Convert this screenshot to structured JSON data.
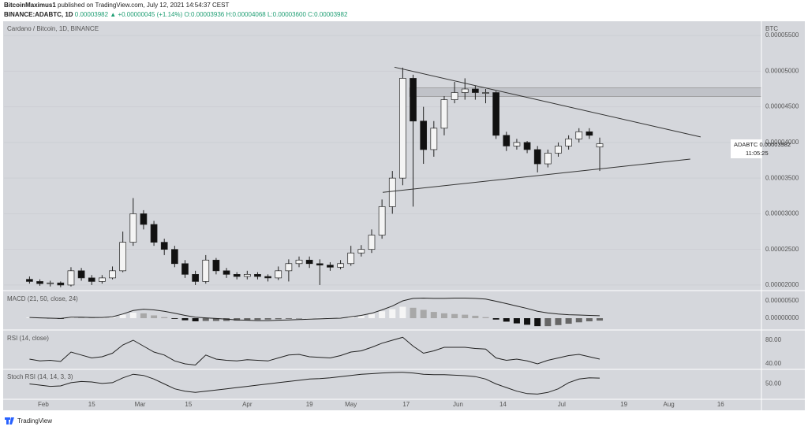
{
  "header": {
    "author": "BitcoinMaximus1",
    "published": "published on TradingView.com, July 12, 2021 14:54:37 CEST",
    "symbol": "BINANCE:ADABTC, 1D",
    "last": "0.00003982",
    "change": "▲ +0.00000045 (+1.14%)",
    "open": "O:0.00003936",
    "high": "H:0.00004068",
    "low": "L:0.00003600",
    "close": "C:0.00003982",
    "price_tag": {
      "symbol": "ADABTC",
      "price": "0.00003982",
      "countdown": "11:05:25"
    },
    "footer": "TradingView"
  },
  "chart_data": [
    {
      "type": "candlestick",
      "title": "Cardano / Bitcoin, 1D, BINANCE",
      "unit": "BTC",
      "x": [
        28,
        31,
        34,
        37,
        40,
        43,
        46,
        49,
        52,
        55,
        58,
        61,
        64,
        67,
        70,
        73,
        76,
        79,
        82,
        85,
        88,
        91,
        94,
        97,
        100,
        103,
        106,
        109,
        112,
        115,
        118,
        121,
        124,
        127,
        130,
        133,
        136,
        139,
        142,
        145,
        148,
        151,
        154,
        157,
        160,
        163,
        166,
        169,
        172,
        175,
        178,
        181,
        184,
        187,
        190,
        193
      ],
      "open": [
        2.08e-05,
        2.05e-05,
        2.02e-05,
        2.03e-05,
        2e-05,
        2.2e-05,
        2.1e-05,
        2.05e-05,
        2.1e-05,
        2.2e-05,
        2.6e-05,
        3e-05,
        2.85e-05,
        2.6e-05,
        2.5e-05,
        2.3e-05,
        2.15e-05,
        2.05e-05,
        2.35e-05,
        2.2e-05,
        2.15e-05,
        2.12e-05,
        2.15e-05,
        2.12e-05,
        2.1e-05,
        2.2e-05,
        2.3e-05,
        2.35e-05,
        2.3e-05,
        2.28e-05,
        2.25e-05,
        2.3e-05,
        2.45e-05,
        2.5e-05,
        2.7e-05,
        3.1e-05,
        3.5e-05,
        4.9e-05,
        4.3e-05,
        3.9e-05,
        4.2e-05,
        4.6e-05,
        4.7e-05,
        4.75e-05,
        4.7e-05,
        4.7e-05,
        4.1e-05,
        3.95e-05,
        4e-05,
        3.9e-05,
        3.7e-05,
        3.85e-05,
        3.95e-05,
        4.05e-05,
        4.15e-05,
        3.936e-05
      ],
      "high": [
        2.12e-05,
        2.08e-05,
        2.06e-05,
        2.05e-05,
        2.25e-05,
        2.24e-05,
        2.14e-05,
        2.14e-05,
        2.26e-05,
        2.75e-05,
        3.22e-05,
        3.05e-05,
        2.9e-05,
        2.65e-05,
        2.55e-05,
        2.35e-05,
        2.2e-05,
        2.42e-05,
        2.38e-05,
        2.24e-05,
        2.18e-05,
        2.2e-05,
        2.18e-05,
        2.15e-05,
        2.26e-05,
        2.36e-05,
        2.4e-05,
        2.4e-05,
        2.36e-05,
        2.32e-05,
        2.35e-05,
        2.55e-05,
        2.56e-05,
        2.78e-05,
        3.2e-05,
        3.6e-05,
        5.05e-05,
        4.95e-05,
        4.5e-05,
        4.3e-05,
        4.65e-05,
        4.85e-05,
        4.9e-05,
        4.8e-05,
        4.75e-05,
        4.72e-05,
        4.15e-05,
        4.05e-05,
        4.02e-05,
        3.95e-05,
        3.9e-05,
        4e-05,
        4.1e-05,
        4.2e-05,
        4.2e-05,
        4.068e-05
      ],
      "low": [
        2.02e-05,
        1.99e-05,
        1.98e-05,
        1.97e-05,
        1.98e-05,
        2.06e-05,
        2e-05,
        2.02e-05,
        2.08e-05,
        2.18e-05,
        2.55e-05,
        2.78e-05,
        2.55e-05,
        2.42e-05,
        2.25e-05,
        2.1e-05,
        2e-05,
        2.02e-05,
        2.15e-05,
        2.1e-05,
        2.08e-05,
        2.08e-05,
        2.08e-05,
        2.05e-05,
        2.07e-05,
        2.05e-05,
        2.25e-05,
        2.24e-05,
        2e-05,
        2.2e-05,
        2.22e-05,
        2.27e-05,
        2.4e-05,
        2.45e-05,
        2.65e-05,
        3e-05,
        3.4e-05,
        3.1e-05,
        3.7e-05,
        3.8e-05,
        4.1e-05,
        4.55e-05,
        4.6e-05,
        4.6e-05,
        4.55e-05,
        4.05e-05,
        3.88e-05,
        3.9e-05,
        3.85e-05,
        3.58e-05,
        3.65e-05,
        3.8e-05,
        3.9e-05,
        4e-05,
        4.05e-05,
        3.6e-05
      ],
      "close": [
        2.05e-05,
        2.02e-05,
        2.03e-05,
        2e-05,
        2.2e-05,
        2.1e-05,
        2.05e-05,
        2.1e-05,
        2.2e-05,
        2.6e-05,
        3e-05,
        2.85e-05,
        2.6e-05,
        2.5e-05,
        2.3e-05,
        2.15e-05,
        2.05e-05,
        2.35e-05,
        2.2e-05,
        2.15e-05,
        2.12e-05,
        2.15e-05,
        2.12e-05,
        2.1e-05,
        2.2e-05,
        2.3e-05,
        2.35e-05,
        2.3e-05,
        2.28e-05,
        2.25e-05,
        2.3e-05,
        2.45e-05,
        2.5e-05,
        2.7e-05,
        3.1e-05,
        3.5e-05,
        4.9e-05,
        4.3e-05,
        3.9e-05,
        4.2e-05,
        4.6e-05,
        4.7e-05,
        4.75e-05,
        4.7e-05,
        4.7e-05,
        4.1e-05,
        3.95e-05,
        4e-05,
        3.9e-05,
        3.7e-05,
        3.85e-05,
        3.95e-05,
        4.05e-05,
        4.15e-05,
        4.1e-05,
        3.982e-05
      ],
      "up_color": "#f4f4f4",
      "down_color": "#111111",
      "trendlines": [
        {
          "x": [
            133.6,
            222.2
          ],
          "y": [
            5.056e-05,
            4.078e-05
          ]
        },
        {
          "x": [
            130.2,
            219.2
          ],
          "y": [
            3.3e-05,
            3.767e-05
          ]
        }
      ],
      "zone": {
        "x": 138,
        "y": [
          4.644e-05,
          4.767e-05
        ]
      },
      "xlim": [
        20.6,
        239.8
      ],
      "xticks": [
        {
          "value": 32,
          "label": "Feb"
        },
        {
          "value": 46,
          "label": "15"
        },
        {
          "value": 60,
          "label": "Mar"
        },
        {
          "value": 74,
          "label": "15"
        },
        {
          "value": 91,
          "label": "Apr"
        },
        {
          "value": 109,
          "label": "19"
        },
        {
          "value": 121,
          "label": "May"
        },
        {
          "value": 137,
          "label": "17"
        },
        {
          "value": 152,
          "label": "Jun"
        },
        {
          "value": 165,
          "label": "14"
        },
        {
          "value": 182,
          "label": "Jul"
        },
        {
          "value": 200,
          "label": "19"
        },
        {
          "value": 213,
          "label": "Aug"
        },
        {
          "value": 228,
          "label": "16"
        }
      ],
      "ylim": [
        1.933e-05,
        5.689e-05
      ],
      "yticks": [
        {
          "value": 2e-05,
          "label": "0.00002000"
        },
        {
          "value": 2.5e-05,
          "label": "0.00002500"
        },
        {
          "value": 3e-05,
          "label": "0.00003000"
        },
        {
          "value": 3.5e-05,
          "label": "0.00003500"
        },
        {
          "value": 4e-05,
          "label": "0.00004000"
        },
        {
          "value": 4.5e-05,
          "label": "0.00004500"
        },
        {
          "value": 5e-05,
          "label": "0.00005000"
        },
        {
          "value": 5.5e-05,
          "label": "0.00005500"
        }
      ],
      "grid": true
    },
    {
      "type": "bar",
      "title": "MACD (21, 50, close, 24)",
      "x": [
        28,
        31,
        34,
        37,
        40,
        43,
        46,
        49,
        52,
        55,
        58,
        61,
        64,
        67,
        70,
        73,
        76,
        79,
        82,
        85,
        88,
        91,
        94,
        97,
        100,
        103,
        106,
        109,
        112,
        115,
        118,
        121,
        124,
        127,
        130,
        133,
        136,
        139,
        142,
        145,
        148,
        151,
        154,
        157,
        160,
        163,
        166,
        169,
        172,
        175,
        178,
        181,
        184,
        187,
        190,
        193
      ],
      "values": [
        2e-07,
        1e-07,
        -1e-07,
        -2e-07,
        3e-07,
        2e-07,
        1e-07,
        1e-07,
        3e-07,
        1e-06,
        1.6e-06,
        1.4e-06,
        8e-07,
        3e-07,
        -2e-07,
        -6e-07,
        -9e-07,
        -8e-07,
        -8e-07,
        -8e-07,
        -7e-07,
        -6e-07,
        -5e-07,
        -4e-07,
        -3e-07,
        -2e-07,
        -1e-07,
        0,
        1e-07,
        1e-07,
        2e-07,
        5e-07,
        8e-07,
        1.2e-06,
        2e-06,
        2.6e-06,
        3.3e-06,
        3e-06,
        2.4e-06,
        1.8e-06,
        1.4e-06,
        1.2e-06,
        1e-06,
        7e-07,
        3e-07,
        -4e-07,
        -1e-06,
        -1.5e-06,
        -1.9e-06,
        -2.3e-06,
        -2.3e-06,
        -2e-06,
        -1.6e-06,
        -1.2e-06,
        -9e-07,
        -7e-07
      ],
      "line": [
        2e-07,
        1e-07,
        0,
        -1e-07,
        3e-07,
        3e-07,
        2e-07,
        2e-07,
        4e-07,
        1.2e-06,
        2.2e-06,
        2.6e-06,
        2.4e-06,
        2e-06,
        1.4e-06,
        8e-07,
        3e-07,
        1e-07,
        -1e-07,
        -3e-07,
        -5e-07,
        -6e-07,
        -7e-07,
        -7e-07,
        -6e-07,
        -5e-07,
        -4e-07,
        -3e-07,
        -2e-07,
        -1e-07,
        0,
        4e-07,
        8e-07,
        1.4e-06,
        2.4e-06,
        3.5e-06,
        5e-06,
        5.7e-06,
        5.8e-06,
        5.7e-06,
        5.7e-06,
        5.8e-06,
        5.8e-06,
        5.7e-06,
        5.5e-06,
        4.9e-06,
        4.2e-06,
        3.5e-06,
        2.8e-06,
        2e-06,
        1.5e-06,
        1.2e-06,
        1e-06,
        9e-07,
        8e-07,
        7e-07
      ],
      "ylim": [
        -3.18e-06,
        7.73e-06
      ],
      "yticks": [
        {
          "value": 0,
          "label": "0.00000000"
        },
        {
          "value": 5e-06,
          "label": "0.00000500"
        }
      ]
    },
    {
      "type": "line",
      "title": "RSI (14, close)",
      "x": [
        28,
        31,
        34,
        37,
        40,
        43,
        46,
        49,
        52,
        55,
        58,
        61,
        64,
        67,
        70,
        73,
        76,
        79,
        82,
        85,
        88,
        91,
        94,
        97,
        100,
        103,
        106,
        109,
        112,
        115,
        118,
        121,
        124,
        127,
        130,
        133,
        136,
        139,
        142,
        145,
        148,
        151,
        154,
        157,
        160,
        163,
        166,
        169,
        172,
        175,
        178,
        181,
        184,
        187,
        190,
        193
      ],
      "values": [
        48,
        45,
        46,
        44,
        60,
        55,
        50,
        52,
        58,
        72,
        80,
        70,
        60,
        55,
        45,
        40,
        38,
        55,
        48,
        46,
        45,
        47,
        46,
        45,
        50,
        55,
        56,
        52,
        51,
        50,
        54,
        60,
        62,
        68,
        75,
        80,
        85,
        70,
        58,
        62,
        68,
        68,
        68,
        66,
        65,
        50,
        46,
        48,
        45,
        40,
        46,
        50,
        54,
        56,
        52,
        48
      ],
      "ylim": [
        32,
        96
      ],
      "yticks": [
        {
          "value": 40,
          "label": "40.00"
        },
        {
          "value": 80,
          "label": "80.00"
        }
      ]
    },
    {
      "type": "line",
      "title": "Stoch RSI (14, 14, 3, 3)",
      "x": [
        28,
        31,
        34,
        37,
        40,
        43,
        46,
        49,
        52,
        55,
        58,
        61,
        64,
        67,
        70,
        73,
        76,
        79,
        82,
        85,
        88,
        91,
        94,
        97,
        100,
        103,
        106,
        109,
        112,
        115,
        118,
        121,
        124,
        127,
        130,
        133,
        136,
        139,
        142,
        145,
        148,
        151,
        154,
        157,
        160,
        163,
        166,
        169,
        172,
        175,
        178,
        181,
        184,
        187,
        190,
        193
      ],
      "values": [
        50,
        45,
        40,
        42,
        55,
        60,
        58,
        52,
        55,
        75,
        90,
        85,
        70,
        50,
        30,
        20,
        15,
        20,
        25,
        30,
        35,
        40,
        45,
        50,
        55,
        60,
        65,
        70,
        72,
        75,
        80,
        85,
        90,
        92,
        95,
        97,
        98,
        95,
        90,
        88,
        88,
        86,
        84,
        80,
        70,
        50,
        35,
        20,
        10,
        8,
        15,
        30,
        55,
        70,
        75,
        74
      ],
      "ylim": [
        -10,
        106.7
      ],
      "yticks": [
        {
          "value": 50,
          "label": "50.00"
        }
      ]
    }
  ]
}
